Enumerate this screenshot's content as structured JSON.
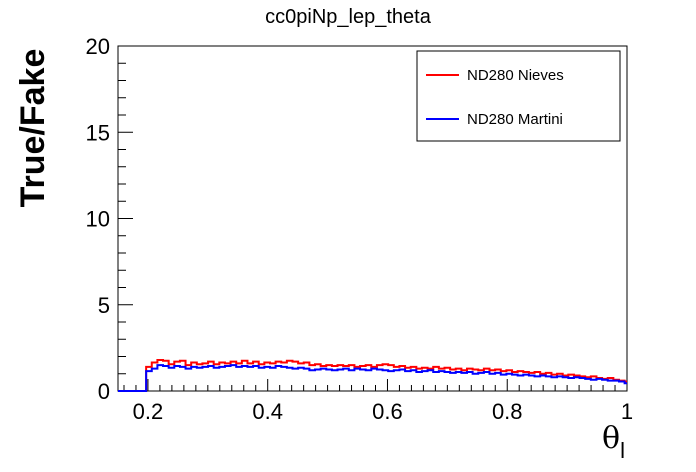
{
  "chart_data": {
    "type": "line",
    "title": "cc0piNp_lep_theta",
    "xlabel": "θ",
    "xlabel_sub": "l",
    "ylabel": "True/Fake",
    "xlim": [
      0.15,
      1.0
    ],
    "ylim": [
      0,
      20
    ],
    "x_ticks": [
      "0.2",
      "0.4",
      "0.6",
      "0.8",
      "1"
    ],
    "y_ticks": [
      "0",
      "5",
      "10",
      "15",
      "20"
    ],
    "grid": false,
    "legend_position": "top-right",
    "bin_edges_start": 0.15,
    "bin_width": 0.0094,
    "series": [
      {
        "name": "ND280 Nieves",
        "color": "#ff0000",
        "values": [
          0,
          0,
          0,
          0,
          0,
          1.4,
          1.65,
          1.8,
          1.75,
          1.55,
          1.7,
          1.75,
          1.5,
          1.65,
          1.55,
          1.6,
          1.7,
          1.55,
          1.65,
          1.6,
          1.7,
          1.6,
          1.75,
          1.6,
          1.7,
          1.55,
          1.65,
          1.6,
          1.7,
          1.65,
          1.75,
          1.7,
          1.6,
          1.65,
          1.5,
          1.55,
          1.45,
          1.5,
          1.45,
          1.5,
          1.45,
          1.5,
          1.4,
          1.45,
          1.5,
          1.4,
          1.5,
          1.55,
          1.5,
          1.4,
          1.45,
          1.35,
          1.4,
          1.3,
          1.35,
          1.3,
          1.4,
          1.3,
          1.35,
          1.25,
          1.3,
          1.2,
          1.3,
          1.25,
          1.2,
          1.3,
          1.2,
          1.25,
          1.15,
          1.2,
          1.1,
          1.15,
          1.1,
          1.05,
          1.1,
          1.0,
          1.05,
          0.95,
          1.0,
          0.9,
          0.95,
          0.9,
          0.85,
          0.8,
          0.85,
          0.75,
          0.7,
          0.75,
          0.65,
          0.6,
          0.55
        ]
      },
      {
        "name": "ND280 Martini",
        "color": "#0000ff",
        "values": [
          0,
          0,
          0,
          0,
          0,
          1.15,
          1.3,
          1.5,
          1.45,
          1.35,
          1.45,
          1.4,
          1.3,
          1.4,
          1.35,
          1.4,
          1.45,
          1.35,
          1.4,
          1.45,
          1.5,
          1.4,
          1.45,
          1.4,
          1.45,
          1.35,
          1.4,
          1.35,
          1.45,
          1.4,
          1.35,
          1.3,
          1.35,
          1.3,
          1.2,
          1.25,
          1.3,
          1.25,
          1.2,
          1.25,
          1.3,
          1.2,
          1.3,
          1.25,
          1.2,
          1.3,
          1.25,
          1.2,
          1.15,
          1.2,
          1.25,
          1.15,
          1.2,
          1.1,
          1.15,
          1.2,
          1.1,
          1.15,
          1.1,
          1.05,
          1.1,
          1.05,
          1.1,
          1.0,
          1.05,
          1.1,
          1.0,
          1.05,
          0.95,
          1.0,
          0.95,
          0.9,
          0.95,
          0.9,
          0.85,
          0.9,
          0.85,
          0.8,
          0.85,
          0.8,
          0.75,
          0.8,
          0.75,
          0.7,
          0.65,
          0.7,
          0.65,
          0.6,
          0.6,
          0.55,
          0.45
        ]
      }
    ]
  }
}
